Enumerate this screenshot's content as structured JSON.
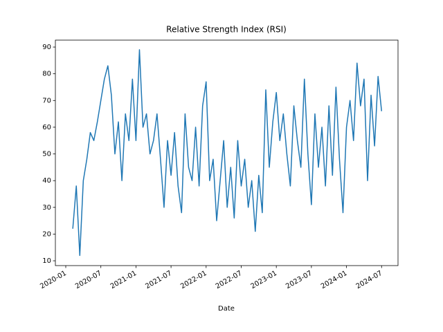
{
  "chart_data": {
    "type": "line",
    "title": "Relative Strength Index (RSI)",
    "x_label": "Date",
    "x": [
      2020.1,
      2020.15,
      2020.2,
      2020.25,
      2020.3,
      2020.35,
      2020.4,
      2020.45,
      2020.5,
      2020.55,
      2020.6,
      2020.65,
      2020.7,
      2020.75,
      2020.8,
      2020.85,
      2020.9,
      2020.95,
      2021.0,
      2021.05,
      2021.1,
      2021.15,
      2021.2,
      2021.25,
      2021.3,
      2021.35,
      2021.4,
      2021.45,
      2021.5,
      2021.55,
      2021.6,
      2021.65,
      2021.7,
      2021.75,
      2021.8,
      2021.85,
      2021.9,
      2021.95,
      2022.0,
      2022.05,
      2022.1,
      2022.15,
      2022.2,
      2022.25,
      2022.3,
      2022.35,
      2022.4,
      2022.45,
      2022.5,
      2022.55,
      2022.6,
      2022.65,
      2022.7,
      2022.75,
      2022.8,
      2022.85,
      2022.9,
      2022.95,
      2023.0,
      2023.05,
      2023.1,
      2023.15,
      2023.2,
      2023.25,
      2023.3,
      2023.35,
      2023.4,
      2023.45,
      2023.5,
      2023.55,
      2023.6,
      2023.65,
      2023.7,
      2023.75,
      2023.8,
      2023.85,
      2023.9,
      2023.95,
      2024.0,
      2024.05,
      2024.1,
      2024.15,
      2024.2,
      2024.25,
      2024.3,
      2024.35,
      2024.4,
      2024.45,
      2024.5
    ],
    "values": [
      22,
      38,
      12,
      40,
      48,
      58,
      55,
      62,
      70,
      78,
      83,
      72,
      50,
      62,
      40,
      65,
      55,
      78,
      55,
      89,
      60,
      65,
      50,
      55,
      65,
      48,
      30,
      55,
      42,
      58,
      38,
      28,
      65,
      45,
      40,
      60,
      38,
      68,
      77,
      40,
      48,
      25,
      40,
      55,
      30,
      45,
      26,
      55,
      38,
      48,
      30,
      40,
      21,
      42,
      28,
      74,
      45,
      62,
      73,
      55,
      65,
      50,
      38,
      68,
      55,
      45,
      78,
      50,
      31,
      65,
      45,
      60,
      38,
      68,
      42,
      75,
      48,
      28,
      60,
      70,
      55,
      84,
      68,
      78,
      40,
      72,
      53,
      79,
      66
    ],
    "color": "#1f77b4",
    "xlim": [
      2019.852,
      2024.734
    ],
    "xticks": [
      {
        "value": 2020.0,
        "label": "2020-01"
      },
      {
        "value": 2020.5,
        "label": "2020-07"
      },
      {
        "value": 2021.0,
        "label": "2021-01"
      },
      {
        "value": 2021.5,
        "label": "2021-07"
      },
      {
        "value": 2022.0,
        "label": "2022-01"
      },
      {
        "value": 2022.5,
        "label": "2022-07"
      },
      {
        "value": 2023.0,
        "label": "2023-01"
      },
      {
        "value": 2023.5,
        "label": "2023-07"
      },
      {
        "value": 2024.0,
        "label": "2024-01"
      },
      {
        "value": 2024.5,
        "label": "2024-07"
      }
    ],
    "ylim": [
      8.2,
      92.6
    ],
    "yticks": [
      10,
      20,
      30,
      40,
      50,
      60,
      70,
      80,
      90
    ]
  }
}
